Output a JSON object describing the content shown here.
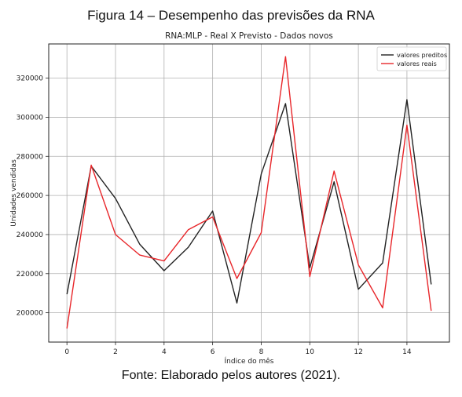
{
  "figure_caption": "Figura 14 – Desempenho das previsões da RNA",
  "source_caption": "Fonte: Elaborado pelos autores (2021).",
  "chart_data": {
    "type": "line",
    "title": "RNA:MLP - Real X Previsto - Dados novos",
    "xlabel": "Índice do mês",
    "ylabel": "Unidades vendidas",
    "x": [
      0,
      1,
      2,
      3,
      4,
      5,
      6,
      7,
      8,
      9,
      10,
      11,
      12,
      13,
      14,
      15
    ],
    "xlim": [
      -0.75,
      15.75
    ],
    "ylim": [
      185000,
      337500
    ],
    "xticks": [
      0,
      2,
      4,
      6,
      8,
      10,
      12,
      14
    ],
    "yticks": [
      200000,
      220000,
      240000,
      260000,
      280000,
      300000,
      320000
    ],
    "grid": true,
    "legend_position": "top-right",
    "series": [
      {
        "name": "valores preditos",
        "color": "#222222",
        "values": [
          209500,
          275000,
          258500,
          235000,
          221500,
          233500,
          252000,
          205000,
          271000,
          307000,
          223000,
          267000,
          212000,
          225500,
          309000,
          214500
        ]
      },
      {
        "name": "valores reais",
        "color": "#e8262a",
        "values": [
          192000,
          275500,
          240000,
          229500,
          226500,
          242500,
          249000,
          217500,
          241000,
          331000,
          218500,
          272500,
          224500,
          202500,
          296000,
          201000
        ]
      }
    ]
  }
}
